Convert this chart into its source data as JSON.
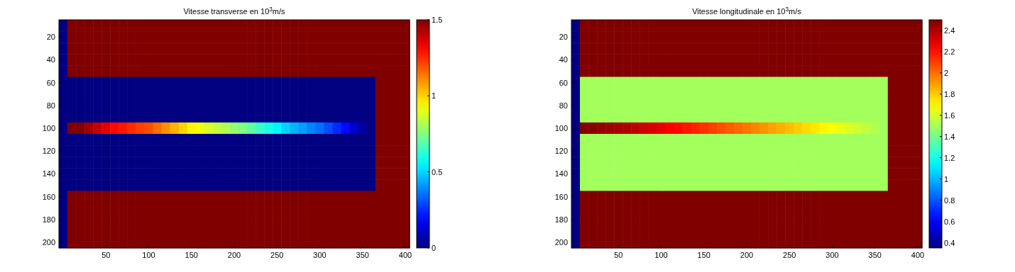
{
  "chart_data": [
    {
      "type": "heatmap",
      "title": "Vitesse transverse en  10$^{3}$m/s",
      "categories": [
        null,
        null,
        null,
        null,
        null,
        "50",
        null,
        null,
        null,
        null,
        "100",
        null,
        null,
        null,
        null,
        "150",
        null,
        null,
        null,
        null,
        "200",
        null,
        null,
        null,
        null,
        "250",
        null,
        null,
        null,
        null,
        "300",
        null,
        null,
        null,
        null,
        "350",
        null,
        null,
        null,
        null,
        "400"
      ],
      "y_categories": [
        null,
        "20",
        null,
        "40",
        null,
        "60",
        null,
        "80",
        null,
        "100",
        null,
        "120",
        null,
        "140",
        null,
        "160",
        null,
        "180",
        null,
        "200"
      ],
      "clim": [
        0,
        1.5
      ],
      "cticks": [
        0,
        0.5,
        1,
        1.5
      ],
      "cells": [
        [
          0,
          1.5,
          1.5,
          1.5,
          1.5,
          1.5,
          1.5,
          1.5,
          1.5,
          1.5,
          1.5,
          1.5,
          1.5,
          1.5,
          1.5,
          1.5,
          1.5,
          1.5,
          1.5,
          1.5,
          1.5,
          1.5,
          1.5,
          1.5,
          1.5,
          1.5,
          1.5,
          1.5,
          1.5,
          1.5,
          1.5,
          1.5,
          1.5,
          1.5,
          1.5,
          1.5,
          1.5,
          1.5,
          1.5,
          1.5,
          1.5
        ],
        [
          0,
          1.5,
          1.5,
          1.5,
          1.5,
          1.5,
          1.5,
          1.5,
          1.5,
          1.5,
          1.5,
          1.5,
          1.5,
          1.5,
          1.5,
          1.5,
          1.5,
          1.5,
          1.5,
          1.5,
          1.5,
          1.5,
          1.5,
          1.5,
          1.5,
          1.5,
          1.5,
          1.5,
          1.5,
          1.5,
          1.5,
          1.5,
          1.5,
          1.5,
          1.5,
          1.5,
          1.5,
          1.5,
          1.5,
          1.5,
          1.5
        ],
        [
          0,
          1.5,
          1.5,
          1.5,
          1.5,
          1.5,
          1.5,
          1.5,
          1.5,
          1.5,
          1.5,
          1.5,
          1.5,
          1.5,
          1.5,
          1.5,
          1.5,
          1.5,
          1.5,
          1.5,
          1.5,
          1.5,
          1.5,
          1.5,
          1.5,
          1.5,
          1.5,
          1.5,
          1.5,
          1.5,
          1.5,
          1.5,
          1.5,
          1.5,
          1.5,
          1.5,
          1.5,
          1.5,
          1.5,
          1.5,
          1.5
        ],
        [
          0,
          1.5,
          1.5,
          1.5,
          1.5,
          1.5,
          1.5,
          1.5,
          1.5,
          1.5,
          1.5,
          1.5,
          1.5,
          1.5,
          1.5,
          1.5,
          1.5,
          1.5,
          1.5,
          1.5,
          1.5,
          1.5,
          1.5,
          1.5,
          1.5,
          1.5,
          1.5,
          1.5,
          1.5,
          1.5,
          1.5,
          1.5,
          1.5,
          1.5,
          1.5,
          1.5,
          1.5,
          1.5,
          1.5,
          1.5,
          1.5
        ],
        [
          0,
          1.5,
          1.5,
          1.5,
          1.5,
          1.5,
          1.5,
          1.5,
          1.5,
          1.5,
          1.5,
          1.5,
          1.5,
          1.5,
          1.5,
          1.5,
          1.5,
          1.5,
          1.5,
          1.5,
          1.5,
          1.5,
          1.5,
          1.5,
          1.5,
          1.5,
          1.5,
          1.5,
          1.5,
          1.5,
          1.5,
          1.5,
          1.5,
          1.5,
          1.5,
          1.5,
          1.5,
          1.5,
          1.5,
          1.5,
          1.5
        ],
        [
          0,
          0,
          0,
          0,
          0,
          0,
          0,
          0,
          0,
          0,
          0,
          0,
          0,
          0,
          0,
          0,
          0,
          0,
          0,
          0,
          0,
          0,
          0,
          0,
          0,
          0,
          0,
          0,
          0,
          0,
          0,
          0,
          0,
          0,
          0,
          0,
          0,
          1.5,
          1.5,
          1.5,
          1.5
        ],
        [
          0,
          0,
          0,
          0,
          0,
          0,
          0,
          0,
          0,
          0,
          0,
          0,
          0,
          0,
          0,
          0,
          0,
          0,
          0,
          0,
          0,
          0,
          0,
          0,
          0,
          0,
          0,
          0,
          0,
          0,
          0,
          0,
          0,
          0,
          0,
          0,
          0,
          1.5,
          1.5,
          1.5,
          1.5
        ],
        [
          0,
          0,
          0,
          0,
          0,
          0,
          0,
          0,
          0,
          0,
          0,
          0,
          0,
          0,
          0,
          0,
          0,
          0,
          0,
          0,
          0,
          0,
          0,
          0,
          0,
          0,
          0,
          0,
          0,
          0,
          0,
          0,
          0,
          0,
          0,
          0,
          0,
          1.5,
          1.5,
          1.5,
          1.5
        ],
        [
          0,
          0,
          0,
          0,
          0,
          0,
          0,
          0,
          0,
          0,
          0,
          0,
          0,
          0,
          0,
          0,
          0,
          0,
          0,
          0,
          0,
          0,
          0,
          0,
          0,
          0,
          0,
          0,
          0,
          0,
          0,
          0,
          0,
          0,
          0,
          0,
          0,
          1.5,
          1.5,
          1.5,
          1.5
        ],
        [
          0,
          1.5,
          1.5,
          1.45,
          1.4,
          1.35,
          1.3,
          1.28,
          1.25,
          1.22,
          1.2,
          1.15,
          1.1,
          1.05,
          1,
          0.95,
          0.92,
          0.88,
          0.85,
          0.82,
          0.78,
          0.75,
          0.7,
          0.65,
          0.6,
          0.55,
          0.5,
          0.45,
          0.42,
          0.38,
          0.35,
          0.3,
          0.25,
          0.2,
          0.12,
          0.05,
          0,
          1.5,
          1.5,
          1.5,
          1.5
        ],
        [
          0,
          0,
          0,
          0,
          0,
          0,
          0,
          0,
          0,
          0,
          0,
          0,
          0,
          0,
          0,
          0,
          0,
          0,
          0,
          0,
          0,
          0,
          0,
          0,
          0,
          0,
          0,
          0,
          0,
          0,
          0,
          0,
          0,
          0,
          0,
          0,
          0,
          1.5,
          1.5,
          1.5,
          1.5
        ],
        [
          0,
          0,
          0,
          0,
          0,
          0,
          0,
          0,
          0,
          0,
          0,
          0,
          0,
          0,
          0,
          0,
          0,
          0,
          0,
          0,
          0,
          0,
          0,
          0,
          0,
          0,
          0,
          0,
          0,
          0,
          0,
          0,
          0,
          0,
          0,
          0,
          0,
          1.5,
          1.5,
          1.5,
          1.5
        ],
        [
          0,
          0,
          0,
          0,
          0,
          0,
          0,
          0,
          0,
          0,
          0,
          0,
          0,
          0,
          0,
          0,
          0,
          0,
          0,
          0,
          0,
          0,
          0,
          0,
          0,
          0,
          0,
          0,
          0,
          0,
          0,
          0,
          0,
          0,
          0,
          0,
          0,
          1.5,
          1.5,
          1.5,
          1.5
        ],
        [
          0,
          0,
          0,
          0,
          0,
          0,
          0,
          0,
          0,
          0,
          0,
          0,
          0,
          0,
          0,
          0,
          0,
          0,
          0,
          0,
          0,
          0,
          0,
          0,
          0,
          0,
          0,
          0,
          0,
          0,
          0,
          0,
          0,
          0,
          0,
          0,
          0,
          1.5,
          1.5,
          1.5,
          1.5
        ],
        [
          0,
          0,
          0,
          0,
          0,
          0,
          0,
          0,
          0,
          0,
          0,
          0,
          0,
          0,
          0,
          0,
          0,
          0,
          0,
          0,
          0,
          0,
          0,
          0,
          0,
          0,
          0,
          0,
          0,
          0,
          0,
          0,
          0,
          0,
          0,
          0,
          0,
          1.5,
          1.5,
          1.5,
          1.5
        ],
        [
          0,
          1.5,
          1.5,
          1.5,
          1.5,
          1.5,
          1.5,
          1.5,
          1.5,
          1.5,
          1.5,
          1.5,
          1.5,
          1.5,
          1.5,
          1.5,
          1.5,
          1.5,
          1.5,
          1.5,
          1.5,
          1.5,
          1.5,
          1.5,
          1.5,
          1.5,
          1.5,
          1.5,
          1.5,
          1.5,
          1.5,
          1.5,
          1.5,
          1.5,
          1.5,
          1.5,
          1.5,
          1.5,
          1.5,
          1.5,
          1.5
        ],
        [
          0,
          1.5,
          1.5,
          1.5,
          1.5,
          1.5,
          1.5,
          1.5,
          1.5,
          1.5,
          1.5,
          1.5,
          1.5,
          1.5,
          1.5,
          1.5,
          1.5,
          1.5,
          1.5,
          1.5,
          1.5,
          1.5,
          1.5,
          1.5,
          1.5,
          1.5,
          1.5,
          1.5,
          1.5,
          1.5,
          1.5,
          1.5,
          1.5,
          1.5,
          1.5,
          1.5,
          1.5,
          1.5,
          1.5,
          1.5,
          1.5
        ],
        [
          0,
          1.5,
          1.5,
          1.5,
          1.5,
          1.5,
          1.5,
          1.5,
          1.5,
          1.5,
          1.5,
          1.5,
          1.5,
          1.5,
          1.5,
          1.5,
          1.5,
          1.5,
          1.5,
          1.5,
          1.5,
          1.5,
          1.5,
          1.5,
          1.5,
          1.5,
          1.5,
          1.5,
          1.5,
          1.5,
          1.5,
          1.5,
          1.5,
          1.5,
          1.5,
          1.5,
          1.5,
          1.5,
          1.5,
          1.5,
          1.5
        ],
        [
          0,
          1.5,
          1.5,
          1.5,
          1.5,
          1.5,
          1.5,
          1.5,
          1.5,
          1.5,
          1.5,
          1.5,
          1.5,
          1.5,
          1.5,
          1.5,
          1.5,
          1.5,
          1.5,
          1.5,
          1.5,
          1.5,
          1.5,
          1.5,
          1.5,
          1.5,
          1.5,
          1.5,
          1.5,
          1.5,
          1.5,
          1.5,
          1.5,
          1.5,
          1.5,
          1.5,
          1.5,
          1.5,
          1.5,
          1.5,
          1.5
        ],
        [
          0,
          1.5,
          1.5,
          1.5,
          1.5,
          1.5,
          1.5,
          1.5,
          1.5,
          1.5,
          1.5,
          1.5,
          1.5,
          1.5,
          1.5,
          1.5,
          1.5,
          1.5,
          1.5,
          1.5,
          1.5,
          1.5,
          1.5,
          1.5,
          1.5,
          1.5,
          1.5,
          1.5,
          1.5,
          1.5,
          1.5,
          1.5,
          1.5,
          1.5,
          1.5,
          1.5,
          1.5,
          1.5,
          1.5,
          1.5,
          1.5
        ]
      ]
    },
    {
      "type": "heatmap",
      "title": "Vitesse longitudinale en  10$^{3}$m/s",
      "categories": [
        null,
        null,
        null,
        null,
        null,
        "50",
        null,
        null,
        null,
        null,
        "100",
        null,
        null,
        null,
        null,
        "150",
        null,
        null,
        null,
        null,
        "200",
        null,
        null,
        null,
        null,
        "250",
        null,
        null,
        null,
        null,
        "300",
        null,
        null,
        null,
        null,
        "350",
        null,
        null,
        null,
        null,
        "400"
      ],
      "y_categories": [
        null,
        "20",
        null,
        "40",
        null,
        "60",
        null,
        "80",
        null,
        "100",
        null,
        "120",
        null,
        "140",
        null,
        "160",
        null,
        "180",
        null,
        "200"
      ],
      "clim": [
        0.35,
        2.5
      ],
      "cticks": [
        0.4,
        0.6,
        0.8,
        1,
        1.2,
        1.4,
        1.6,
        1.8,
        2,
        2.2,
        2.4
      ],
      "cells": [
        [
          0.35,
          2.5,
          2.5,
          2.5,
          2.5,
          2.5,
          2.5,
          2.5,
          2.5,
          2.5,
          2.5,
          2.5,
          2.5,
          2.5,
          2.5,
          2.5,
          2.5,
          2.5,
          2.5,
          2.5,
          2.5,
          2.5,
          2.5,
          2.5,
          2.5,
          2.5,
          2.5,
          2.5,
          2.5,
          2.5,
          2.5,
          2.5,
          2.5,
          2.5,
          2.5,
          2.5,
          2.5,
          2.5,
          2.5,
          2.5,
          2.5
        ],
        [
          0.35,
          2.5,
          2.5,
          2.5,
          2.5,
          2.5,
          2.5,
          2.5,
          2.5,
          2.5,
          2.5,
          2.5,
          2.5,
          2.5,
          2.5,
          2.5,
          2.5,
          2.5,
          2.5,
          2.5,
          2.5,
          2.5,
          2.5,
          2.5,
          2.5,
          2.5,
          2.5,
          2.5,
          2.5,
          2.5,
          2.5,
          2.5,
          2.5,
          2.5,
          2.5,
          2.5,
          2.5,
          2.5,
          2.5,
          2.5,
          2.5
        ],
        [
          0.35,
          2.5,
          2.5,
          2.5,
          2.5,
          2.5,
          2.5,
          2.5,
          2.5,
          2.5,
          2.5,
          2.5,
          2.5,
          2.5,
          2.5,
          2.5,
          2.5,
          2.5,
          2.5,
          2.5,
          2.5,
          2.5,
          2.5,
          2.5,
          2.5,
          2.5,
          2.5,
          2.5,
          2.5,
          2.5,
          2.5,
          2.5,
          2.5,
          2.5,
          2.5,
          2.5,
          2.5,
          2.5,
          2.5,
          2.5,
          2.5
        ],
        [
          0.35,
          2.5,
          2.5,
          2.5,
          2.5,
          2.5,
          2.5,
          2.5,
          2.5,
          2.5,
          2.5,
          2.5,
          2.5,
          2.5,
          2.5,
          2.5,
          2.5,
          2.5,
          2.5,
          2.5,
          2.5,
          2.5,
          2.5,
          2.5,
          2.5,
          2.5,
          2.5,
          2.5,
          2.5,
          2.5,
          2.5,
          2.5,
          2.5,
          2.5,
          2.5,
          2.5,
          2.5,
          2.5,
          2.5,
          2.5,
          2.5
        ],
        [
          0.35,
          2.5,
          2.5,
          2.5,
          2.5,
          2.5,
          2.5,
          2.5,
          2.5,
          2.5,
          2.5,
          2.5,
          2.5,
          2.5,
          2.5,
          2.5,
          2.5,
          2.5,
          2.5,
          2.5,
          2.5,
          2.5,
          2.5,
          2.5,
          2.5,
          2.5,
          2.5,
          2.5,
          2.5,
          2.5,
          2.5,
          2.5,
          2.5,
          2.5,
          2.5,
          2.5,
          2.5,
          2.5,
          2.5,
          2.5,
          2.5
        ],
        [
          0.35,
          1.5,
          1.5,
          1.5,
          1.5,
          1.5,
          1.5,
          1.5,
          1.5,
          1.5,
          1.5,
          1.5,
          1.5,
          1.5,
          1.5,
          1.5,
          1.5,
          1.5,
          1.5,
          1.5,
          1.5,
          1.5,
          1.5,
          1.5,
          1.5,
          1.5,
          1.5,
          1.5,
          1.5,
          1.5,
          1.5,
          1.5,
          1.5,
          1.5,
          1.5,
          1.5,
          1.5,
          2.5,
          2.5,
          2.5,
          2.5
        ],
        [
          0.35,
          1.5,
          1.5,
          1.5,
          1.5,
          1.5,
          1.5,
          1.5,
          1.5,
          1.5,
          1.5,
          1.5,
          1.5,
          1.5,
          1.5,
          1.5,
          1.5,
          1.5,
          1.5,
          1.5,
          1.5,
          1.5,
          1.5,
          1.5,
          1.5,
          1.5,
          1.5,
          1.5,
          1.5,
          1.5,
          1.5,
          1.5,
          1.5,
          1.5,
          1.5,
          1.5,
          1.5,
          2.5,
          2.5,
          2.5,
          2.5
        ],
        [
          0.35,
          1.5,
          1.5,
          1.5,
          1.5,
          1.5,
          1.5,
          1.5,
          1.5,
          1.5,
          1.5,
          1.5,
          1.5,
          1.5,
          1.5,
          1.5,
          1.5,
          1.5,
          1.5,
          1.5,
          1.5,
          1.5,
          1.5,
          1.5,
          1.5,
          1.5,
          1.5,
          1.5,
          1.5,
          1.5,
          1.5,
          1.5,
          1.5,
          1.5,
          1.5,
          1.5,
          1.5,
          2.5,
          2.5,
          2.5,
          2.5
        ],
        [
          0.35,
          1.5,
          1.5,
          1.5,
          1.5,
          1.5,
          1.5,
          1.5,
          1.5,
          1.5,
          1.5,
          1.5,
          1.5,
          1.5,
          1.5,
          1.5,
          1.5,
          1.5,
          1.5,
          1.5,
          1.5,
          1.5,
          1.5,
          1.5,
          1.5,
          1.5,
          1.5,
          1.5,
          1.5,
          1.5,
          1.5,
          1.5,
          1.5,
          1.5,
          1.5,
          1.5,
          1.5,
          2.5,
          2.5,
          2.5,
          2.5
        ],
        [
          0.35,
          2.5,
          2.48,
          2.46,
          2.44,
          2.42,
          2.4,
          2.37,
          2.34,
          2.31,
          2.28,
          2.25,
          2.22,
          2.19,
          2.16,
          2.13,
          2.1,
          2.07,
          2.04,
          2.01,
          1.98,
          1.95,
          1.92,
          1.89,
          1.86,
          1.83,
          1.8,
          1.77,
          1.74,
          1.71,
          1.68,
          1.65,
          1.62,
          1.59,
          1.56,
          1.53,
          1.5,
          2.5,
          2.5,
          2.5,
          2.5
        ],
        [
          0.35,
          1.5,
          1.5,
          1.5,
          1.5,
          1.5,
          1.5,
          1.5,
          1.5,
          1.5,
          1.5,
          1.5,
          1.5,
          1.5,
          1.5,
          1.5,
          1.5,
          1.5,
          1.5,
          1.5,
          1.5,
          1.5,
          1.5,
          1.5,
          1.5,
          1.5,
          1.5,
          1.5,
          1.5,
          1.5,
          1.5,
          1.5,
          1.5,
          1.5,
          1.5,
          1.5,
          1.5,
          2.5,
          2.5,
          2.5,
          2.5
        ],
        [
          0.35,
          1.5,
          1.5,
          1.5,
          1.5,
          1.5,
          1.5,
          1.5,
          1.5,
          1.5,
          1.5,
          1.5,
          1.5,
          1.5,
          1.5,
          1.5,
          1.5,
          1.5,
          1.5,
          1.5,
          1.5,
          1.5,
          1.5,
          1.5,
          1.5,
          1.5,
          1.5,
          1.5,
          1.5,
          1.5,
          1.5,
          1.5,
          1.5,
          1.5,
          1.5,
          1.5,
          1.5,
          2.5,
          2.5,
          2.5,
          2.5
        ],
        [
          0.35,
          1.5,
          1.5,
          1.5,
          1.5,
          1.5,
          1.5,
          1.5,
          1.5,
          1.5,
          1.5,
          1.5,
          1.5,
          1.5,
          1.5,
          1.5,
          1.5,
          1.5,
          1.5,
          1.5,
          1.5,
          1.5,
          1.5,
          1.5,
          1.5,
          1.5,
          1.5,
          1.5,
          1.5,
          1.5,
          1.5,
          1.5,
          1.5,
          1.5,
          1.5,
          1.5,
          1.5,
          2.5,
          2.5,
          2.5,
          2.5
        ],
        [
          0.35,
          1.5,
          1.5,
          1.5,
          1.5,
          1.5,
          1.5,
          1.5,
          1.5,
          1.5,
          1.5,
          1.5,
          1.5,
          1.5,
          1.5,
          1.5,
          1.5,
          1.5,
          1.5,
          1.5,
          1.5,
          1.5,
          1.5,
          1.5,
          1.5,
          1.5,
          1.5,
          1.5,
          1.5,
          1.5,
          1.5,
          1.5,
          1.5,
          1.5,
          1.5,
          1.5,
          1.5,
          2.5,
          2.5,
          2.5,
          2.5
        ],
        [
          0.35,
          1.5,
          1.5,
          1.5,
          1.5,
          1.5,
          1.5,
          1.5,
          1.5,
          1.5,
          1.5,
          1.5,
          1.5,
          1.5,
          1.5,
          1.5,
          1.5,
          1.5,
          1.5,
          1.5,
          1.5,
          1.5,
          1.5,
          1.5,
          1.5,
          1.5,
          1.5,
          1.5,
          1.5,
          1.5,
          1.5,
          1.5,
          1.5,
          1.5,
          1.5,
          1.5,
          1.5,
          2.5,
          2.5,
          2.5,
          2.5
        ],
        [
          0.35,
          2.5,
          2.5,
          2.5,
          2.5,
          2.5,
          2.5,
          2.5,
          2.5,
          2.5,
          2.5,
          2.5,
          2.5,
          2.5,
          2.5,
          2.5,
          2.5,
          2.5,
          2.5,
          2.5,
          2.5,
          2.5,
          2.5,
          2.5,
          2.5,
          2.5,
          2.5,
          2.5,
          2.5,
          2.5,
          2.5,
          2.5,
          2.5,
          2.5,
          2.5,
          2.5,
          2.5,
          2.5,
          2.5,
          2.5,
          2.5
        ],
        [
          0.35,
          2.5,
          2.5,
          2.5,
          2.5,
          2.5,
          2.5,
          2.5,
          2.5,
          2.5,
          2.5,
          2.5,
          2.5,
          2.5,
          2.5,
          2.5,
          2.5,
          2.5,
          2.5,
          2.5,
          2.5,
          2.5,
          2.5,
          2.5,
          2.5,
          2.5,
          2.5,
          2.5,
          2.5,
          2.5,
          2.5,
          2.5,
          2.5,
          2.5,
          2.5,
          2.5,
          2.5,
          2.5,
          2.5,
          2.5,
          2.5
        ],
        [
          0.35,
          2.5,
          2.5,
          2.5,
          2.5,
          2.5,
          2.5,
          2.5,
          2.5,
          2.5,
          2.5,
          2.5,
          2.5,
          2.5,
          2.5,
          2.5,
          2.5,
          2.5,
          2.5,
          2.5,
          2.5,
          2.5,
          2.5,
          2.5,
          2.5,
          2.5,
          2.5,
          2.5,
          2.5,
          2.5,
          2.5,
          2.5,
          2.5,
          2.5,
          2.5,
          2.5,
          2.5,
          2.5,
          2.5,
          2.5,
          2.5
        ],
        [
          0.35,
          2.5,
          2.5,
          2.5,
          2.5,
          2.5,
          2.5,
          2.5,
          2.5,
          2.5,
          2.5,
          2.5,
          2.5,
          2.5,
          2.5,
          2.5,
          2.5,
          2.5,
          2.5,
          2.5,
          2.5,
          2.5,
          2.5,
          2.5,
          2.5,
          2.5,
          2.5,
          2.5,
          2.5,
          2.5,
          2.5,
          2.5,
          2.5,
          2.5,
          2.5,
          2.5,
          2.5,
          2.5,
          2.5,
          2.5,
          2.5
        ],
        [
          0.35,
          2.5,
          2.5,
          2.5,
          2.5,
          2.5,
          2.5,
          2.5,
          2.5,
          2.5,
          2.5,
          2.5,
          2.5,
          2.5,
          2.5,
          2.5,
          2.5,
          2.5,
          2.5,
          2.5,
          2.5,
          2.5,
          2.5,
          2.5,
          2.5,
          2.5,
          2.5,
          2.5,
          2.5,
          2.5,
          2.5,
          2.5,
          2.5,
          2.5,
          2.5,
          2.5,
          2.5,
          2.5,
          2.5,
          2.5,
          2.5
        ]
      ]
    }
  ]
}
